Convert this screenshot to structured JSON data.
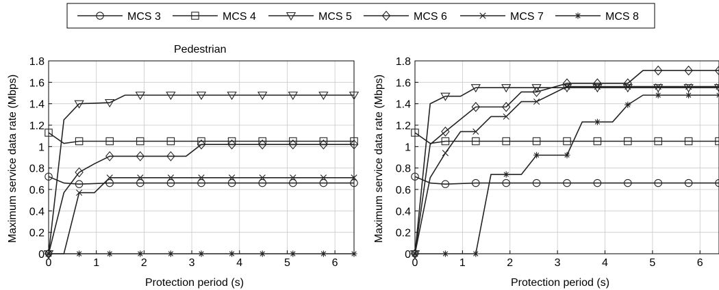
{
  "legend": [
    {
      "label": "MCS 3",
      "marker": "circle"
    },
    {
      "label": "MCS 4",
      "marker": "square"
    },
    {
      "label": "MCS 5",
      "marker": "triangle-down"
    },
    {
      "label": "MCS 6",
      "marker": "diamond"
    },
    {
      "label": "MCS 7",
      "marker": "x"
    },
    {
      "label": "MCS 8",
      "marker": "asterisk"
    }
  ],
  "chart_data": [
    {
      "type": "line",
      "title": "Pedestrian",
      "xlabel": "Protection period (s)",
      "ylabel": "Maximum service data rate (Mbps)",
      "xlim": [
        0,
        6.4
      ],
      "ylim": [
        0,
        1.8
      ],
      "xticks": [
        "0",
        "1",
        "2",
        "3",
        "4",
        "5",
        "6"
      ],
      "yticks": [
        "0",
        "0.2",
        "0.4",
        "0.6",
        "0.8",
        "1",
        "1.2",
        "1.4",
        "1.6",
        "1.8"
      ],
      "grid": true,
      "series": [
        {
          "name": "MCS 3",
          "x": [
            0,
            0.32,
            0.64,
            1.28,
            6.4
          ],
          "y": [
            0.72,
            0.66,
            0.65,
            0.66,
            0.66
          ]
        },
        {
          "name": "MCS 4",
          "x": [
            0,
            0.32,
            0.64,
            1.28,
            6.4
          ],
          "y": [
            1.13,
            1.03,
            1.05,
            1.05,
            1.05
          ]
        },
        {
          "name": "MCS 5",
          "x": [
            0,
            0.32,
            0.64,
            1.28,
            1.6,
            6.4
          ],
          "y": [
            0,
            1.25,
            1.4,
            1.41,
            1.48,
            1.48
          ]
        },
        {
          "name": "MCS 6",
          "x": [
            0,
            0.32,
            0.64,
            0.96,
            1.28,
            2.88,
            3.2,
            6.4
          ],
          "y": [
            0,
            0.57,
            0.76,
            0.84,
            0.91,
            0.91,
            1.02,
            1.02
          ]
        },
        {
          "name": "MCS 7",
          "x": [
            0,
            0.32,
            0.64,
            0.96,
            1.28,
            6.4
          ],
          "y": [
            0,
            0,
            0.57,
            0.57,
            0.71,
            0.71
          ]
        },
        {
          "name": "MCS 8",
          "x": [
            0,
            6.4
          ],
          "y": [
            0,
            0
          ]
        }
      ]
    },
    {
      "type": "line",
      "title": "",
      "xlabel": "Protection period (s)",
      "ylabel": "Maximum service data rate (Mbps)",
      "xlim": [
        0,
        6.4
      ],
      "ylim": [
        0,
        1.8
      ],
      "xticks": [
        "0",
        "1",
        "2",
        "3",
        "4",
        "5",
        "6"
      ],
      "yticks": [
        "0",
        "0.2",
        "0.4",
        "0.6",
        "0.8",
        "1",
        "1.2",
        "1.4",
        "1.6",
        "1.8"
      ],
      "grid": true,
      "series": [
        {
          "name": "MCS 3",
          "x": [
            0,
            0.32,
            0.64,
            1.28,
            6.4
          ],
          "y": [
            0.72,
            0.66,
            0.65,
            0.66,
            0.66
          ]
        },
        {
          "name": "MCS 4",
          "x": [
            0,
            0.32,
            0.64,
            1.28,
            6.4
          ],
          "y": [
            1.13,
            1.03,
            1.05,
            1.05,
            1.05
          ]
        },
        {
          "name": "MCS 5",
          "x": [
            0,
            0.32,
            0.64,
            0.96,
            1.28,
            6.4
          ],
          "y": [
            0,
            1.4,
            1.47,
            1.47,
            1.55,
            1.55
          ]
        },
        {
          "name": "MCS 6",
          "x": [
            0,
            0.32,
            0.64,
            1.28,
            1.92,
            2.24,
            2.56,
            3.2,
            4.48,
            4.8,
            6.4
          ],
          "y": [
            0,
            1.02,
            1.14,
            1.37,
            1.37,
            1.51,
            1.51,
            1.59,
            1.59,
            1.71,
            1.71
          ]
        },
        {
          "name": "MCS 7",
          "x": [
            0,
            0.32,
            0.64,
            0.96,
            1.28,
            1.6,
            1.92,
            2.24,
            2.56,
            3.2,
            6.4
          ],
          "y": [
            0,
            0.71,
            0.94,
            1.14,
            1.14,
            1.28,
            1.28,
            1.42,
            1.42,
            1.56,
            1.56
          ]
        },
        {
          "name": "MCS 8",
          "x": [
            0,
            1.28,
            1.6,
            2.24,
            2.56,
            3.2,
            3.52,
            4.16,
            4.48,
            4.8,
            6.4
          ],
          "y": [
            0,
            0,
            0.74,
            0.74,
            0.92,
            0.92,
            1.23,
            1.23,
            1.39,
            1.48,
            1.48
          ]
        }
      ]
    }
  ]
}
